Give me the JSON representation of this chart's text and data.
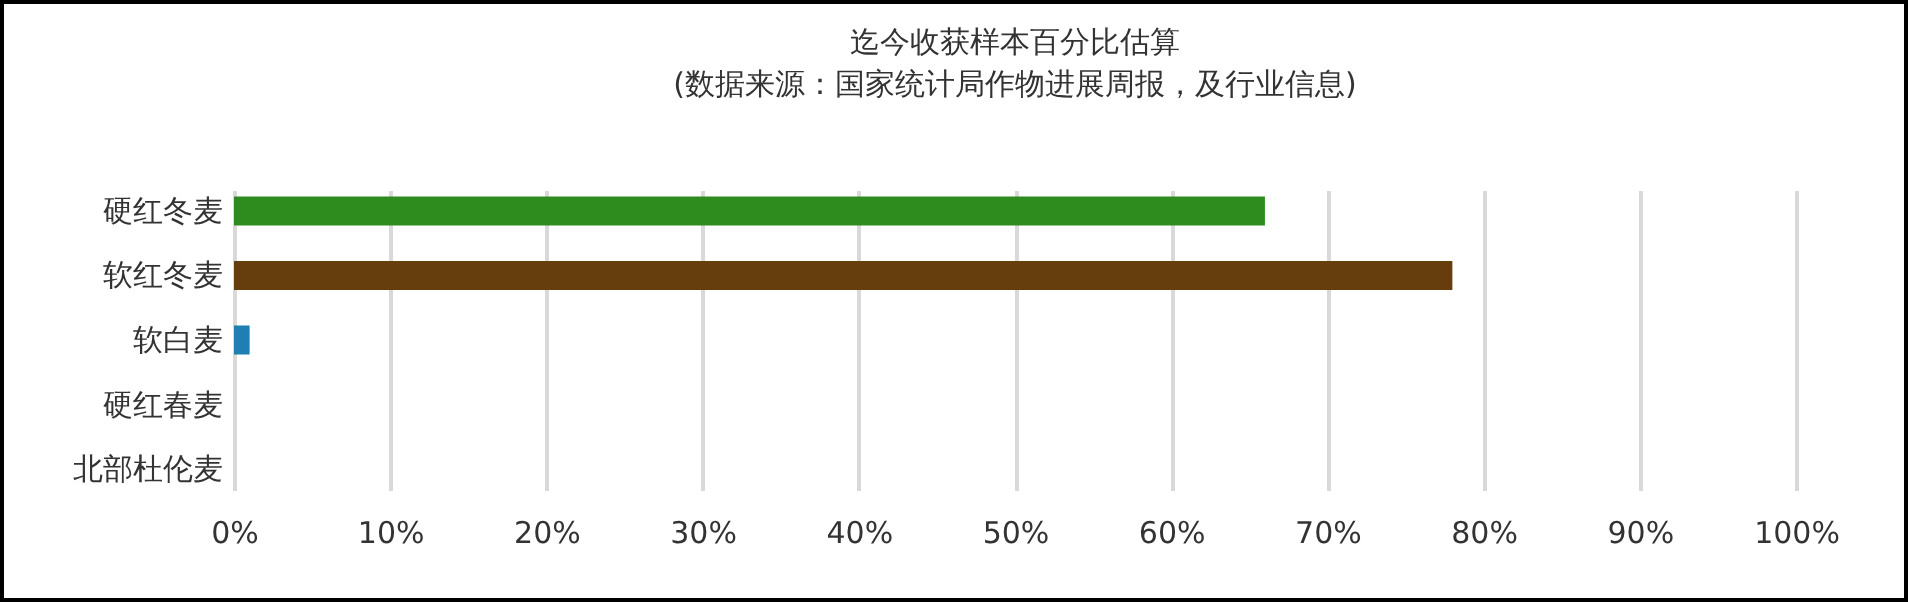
{
  "chart_data": {
    "type": "bar",
    "orientation": "horizontal",
    "title": "迄今收获样本百分比估算",
    "subtitle": "(数据来源：国家统计局作物进展周报，及行业信息)",
    "categories": [
      "硬红冬麦",
      "软红冬麦",
      "软白麦",
      "硬红春麦",
      "北部杜伦麦"
    ],
    "values": [
      66,
      78,
      1,
      0,
      0
    ],
    "colors": [
      "#2e8b1e",
      "#663d0c",
      "#1f7fb4",
      "#1f7fb4",
      "#1f7fb4"
    ],
    "xlim": [
      0,
      100
    ],
    "xticks": [
      {
        "value": 0,
        "label": "0%"
      },
      {
        "value": 10,
        "label": "10%"
      },
      {
        "value": 20,
        "label": "20%"
      },
      {
        "value": 30,
        "label": "30%"
      },
      {
        "value": 40,
        "label": "40%"
      },
      {
        "value": 50,
        "label": "50%"
      },
      {
        "value": 60,
        "label": "60%"
      },
      {
        "value": 70,
        "label": "70%"
      },
      {
        "value": 80,
        "label": "80%"
      },
      {
        "value": 90,
        "label": "90%"
      },
      {
        "value": 100,
        "label": "100%"
      }
    ],
    "grid": "x"
  }
}
